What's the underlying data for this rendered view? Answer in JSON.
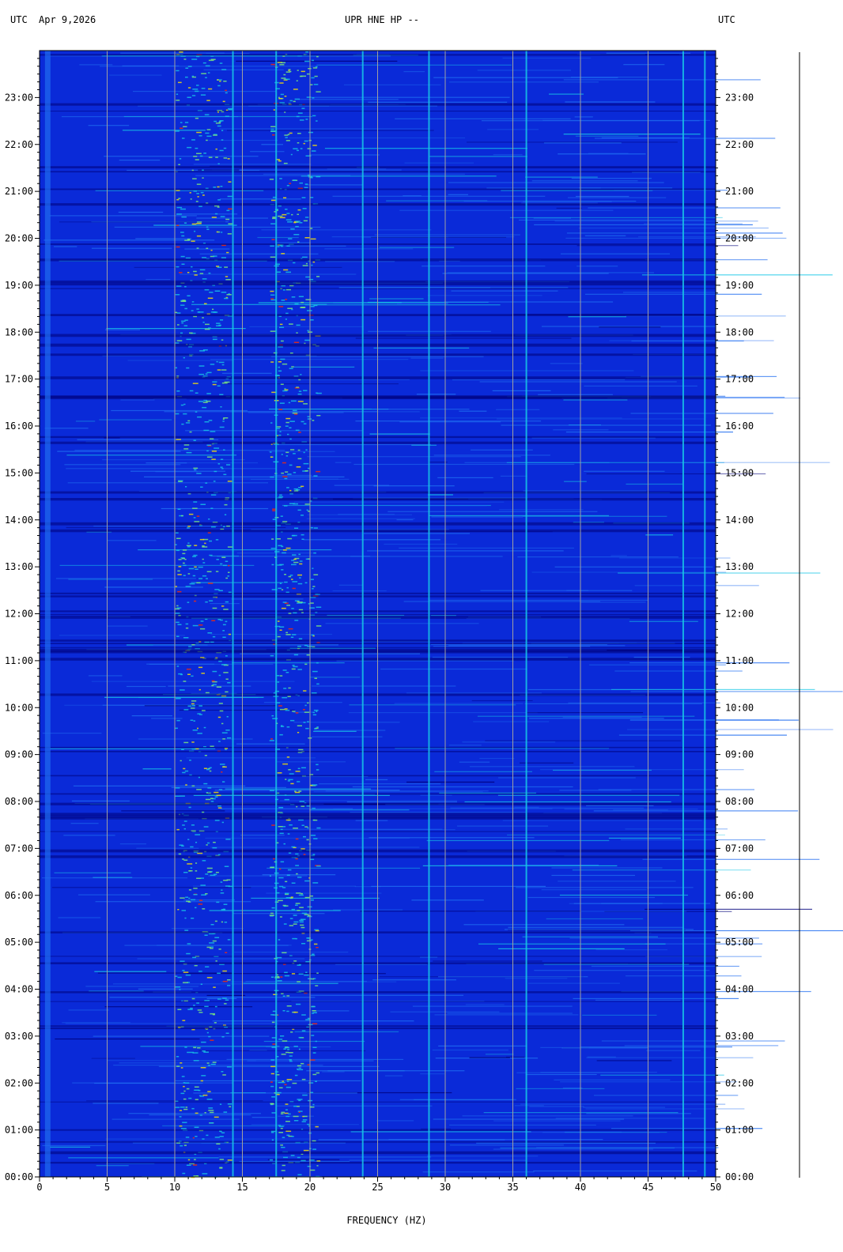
{
  "header": {
    "left_timezone": "UTC",
    "date": "Apr 9,2026",
    "station": "UPR HNE HP --",
    "right_timezone": "UTC"
  },
  "chart_data": {
    "type": "heatmap",
    "title": "UPR HNE HP --",
    "xlabel": "FREQUENCY (HZ)",
    "ylabel": "",
    "xlim": [
      0,
      50
    ],
    "ylim_hours": [
      0,
      24
    ],
    "x_ticks": [
      "0",
      "5",
      "10",
      "15",
      "20",
      "25",
      "30",
      "35",
      "40",
      "45",
      "50"
    ],
    "y_ticks": [
      "00:00",
      "01:00",
      "02:00",
      "03:00",
      "04:00",
      "05:00",
      "06:00",
      "07:00",
      "08:00",
      "09:00",
      "10:00",
      "11:00",
      "12:00",
      "13:00",
      "14:00",
      "15:00",
      "16:00",
      "17:00",
      "18:00",
      "19:00",
      "20:00",
      "21:00",
      "22:00",
      "23:00"
    ],
    "grid": true,
    "colormap": [
      "#00007a",
      "#0a2ad8",
      "#1f6cf0",
      "#18c6e6",
      "#7ff07a",
      "#ffe600",
      "#ff2a00"
    ],
    "persistent_lines_hz": [
      14.3,
      17.5,
      23.9,
      28.8,
      36.0,
      47.6,
      49.2
    ],
    "energy_bands_hz": [
      [
        10.0,
        14.0
      ],
      [
        17.0,
        20.5
      ]
    ]
  }
}
